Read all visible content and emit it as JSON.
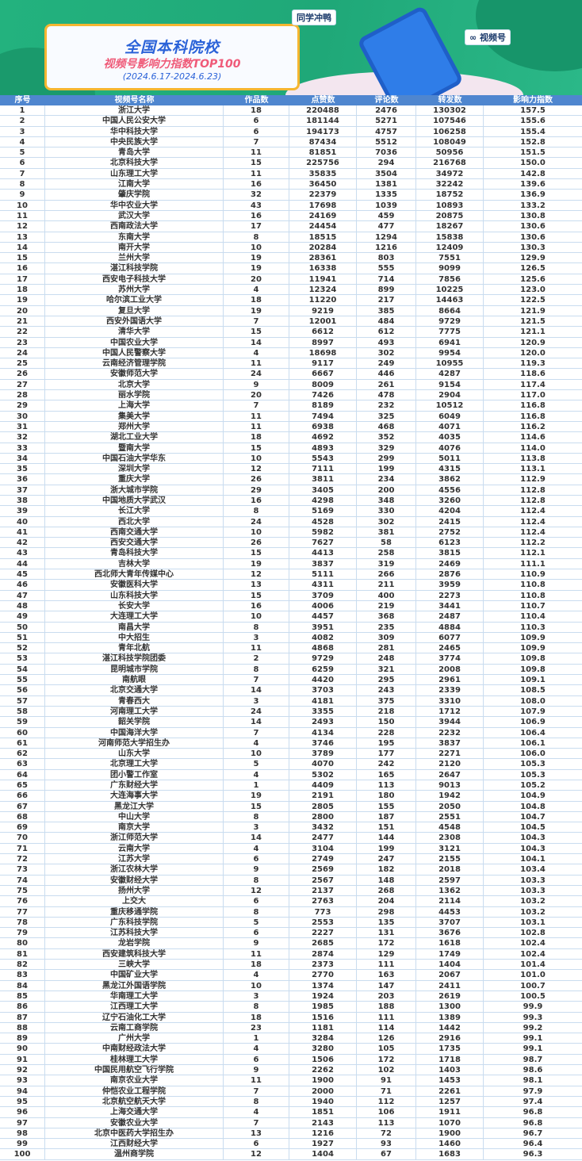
{
  "banner": {
    "title": "全国本科院校",
    "subtitle": "视频号影响力指数TOP100",
    "date_range": "(2024.6.17-2024.6.23)",
    "tag_left": "同学冲鸭",
    "tag_right": "视频号"
  },
  "colors": {
    "banner_green": "#23b27e",
    "header_blue": "#4f86cf",
    "title_blue": "#2a62d8",
    "subtitle_pink": "#ef5a78",
    "card_border": "#f5b630"
  },
  "table": {
    "headers": [
      "序号",
      "视频号名称",
      "作品数",
      "点赞数",
      "评论数",
      "转发数",
      "影响力指数"
    ],
    "rows": [
      [
        "1",
        "浙江大学",
        "18",
        "220488",
        "2476",
        "130302",
        "157.5"
      ],
      [
        "2",
        "中国人民公安大学",
        "6",
        "181144",
        "5271",
        "107546",
        "155.6"
      ],
      [
        "3",
        "华中科技大学",
        "6",
        "194173",
        "4757",
        "106258",
        "155.4"
      ],
      [
        "4",
        "中央民族大学",
        "7",
        "87434",
        "5512",
        "108049",
        "152.8"
      ],
      [
        "5",
        "青岛大学",
        "11",
        "81851",
        "7036",
        "50956",
        "151.5"
      ],
      [
        "6",
        "北京科技大学",
        "15",
        "225756",
        "294",
        "216768",
        "150.0"
      ],
      [
        "7",
        "山东理工大学",
        "11",
        "35835",
        "3504",
        "34972",
        "142.8"
      ],
      [
        "8",
        "江南大学",
        "16",
        "36450",
        "1381",
        "32242",
        "139.6"
      ],
      [
        "9",
        "肇庆学院",
        "32",
        "22379",
        "1335",
        "18752",
        "136.9"
      ],
      [
        "10",
        "华中农业大学",
        "43",
        "17698",
        "1039",
        "10893",
        "133.2"
      ],
      [
        "11",
        "武汉大学",
        "16",
        "24169",
        "459",
        "20875",
        "130.8"
      ],
      [
        "12",
        "西南政法大学",
        "17",
        "24454",
        "477",
        "18267",
        "130.6"
      ],
      [
        "13",
        "东南大学",
        "8",
        "18515",
        "1294",
        "15838",
        "130.6"
      ],
      [
        "14",
        "南开大学",
        "10",
        "20284",
        "1216",
        "12409",
        "130.3"
      ],
      [
        "15",
        "兰州大学",
        "19",
        "28361",
        "803",
        "7551",
        "129.9"
      ],
      [
        "16",
        "湛江科技学院",
        "19",
        "16338",
        "555",
        "9099",
        "126.5"
      ],
      [
        "17",
        "西安电子科技大学",
        "20",
        "11941",
        "714",
        "7856",
        "125.6"
      ],
      [
        "18",
        "苏州大学",
        "4",
        "12324",
        "899",
        "10225",
        "123.0"
      ],
      [
        "19",
        "哈尔滨工业大学",
        "18",
        "11220",
        "217",
        "14463",
        "122.5"
      ],
      [
        "20",
        "复旦大学",
        "19",
        "9219",
        "385",
        "8664",
        "121.9"
      ],
      [
        "21",
        "西安外国语大学",
        "7",
        "12001",
        "484",
        "9729",
        "121.5"
      ],
      [
        "22",
        "清华大学",
        "15",
        "6612",
        "612",
        "7775",
        "121.1"
      ],
      [
        "23",
        "中国农业大学",
        "14",
        "8997",
        "493",
        "6941",
        "120.9"
      ],
      [
        "24",
        "中国人民警察大学",
        "4",
        "18698",
        "302",
        "9954",
        "120.0"
      ],
      [
        "25",
        "云南经济管理学院",
        "11",
        "9117",
        "249",
        "10955",
        "119.3"
      ],
      [
        "26",
        "安徽师范大学",
        "24",
        "6667",
        "446",
        "4287",
        "118.6"
      ],
      [
        "27",
        "北京大学",
        "9",
        "8009",
        "261",
        "9154",
        "117.4"
      ],
      [
        "28",
        "丽水学院",
        "20",
        "7426",
        "478",
        "2904",
        "117.0"
      ],
      [
        "29",
        "上海大学",
        "7",
        "8189",
        "232",
        "10512",
        "116.8"
      ],
      [
        "30",
        "集美大学",
        "11",
        "7494",
        "325",
        "6049",
        "116.8"
      ],
      [
        "31",
        "郑州大学",
        "11",
        "6938",
        "468",
        "4071",
        "116.2"
      ],
      [
        "32",
        "湖北工业大学",
        "18",
        "4692",
        "352",
        "4035",
        "114.6"
      ],
      [
        "33",
        "暨南大学",
        "15",
        "4893",
        "329",
        "4076",
        "114.0"
      ],
      [
        "34",
        "中国石油大学华东",
        "10",
        "5543",
        "299",
        "5011",
        "113.8"
      ],
      [
        "35",
        "深圳大学",
        "12",
        "7111",
        "199",
        "4315",
        "113.1"
      ],
      [
        "36",
        "重庆大学",
        "26",
        "3811",
        "234",
        "3862",
        "112.9"
      ],
      [
        "37",
        "浙大城市学院",
        "29",
        "3405",
        "200",
        "4556",
        "112.8"
      ],
      [
        "38",
        "中国地质大学武汉",
        "16",
        "4298",
        "348",
        "3260",
        "112.8"
      ],
      [
        "39",
        "长江大学",
        "8",
        "5169",
        "330",
        "4204",
        "112.4"
      ],
      [
        "40",
        "西北大学",
        "24",
        "4528",
        "302",
        "2415",
        "112.4"
      ],
      [
        "41",
        "西南交通大学",
        "10",
        "5982",
        "381",
        "2752",
        "112.4"
      ],
      [
        "42",
        "西安交通大学",
        "26",
        "7627",
        "58",
        "6123",
        "112.2"
      ],
      [
        "43",
        "青岛科技大学",
        "15",
        "4413",
        "258",
        "3815",
        "112.1"
      ],
      [
        "44",
        "吉林大学",
        "19",
        "3837",
        "319",
        "2469",
        "111.1"
      ],
      [
        "45",
        "西北师大青年传媒中心",
        "12",
        "5111",
        "266",
        "2876",
        "110.9"
      ],
      [
        "46",
        "安徽医科大学",
        "13",
        "4311",
        "211",
        "3959",
        "110.8"
      ],
      [
        "47",
        "山东科技大学",
        "15",
        "3709",
        "400",
        "2273",
        "110.8"
      ],
      [
        "48",
        "长安大学",
        "16",
        "4006",
        "219",
        "3441",
        "110.7"
      ],
      [
        "49",
        "大连理工大学",
        "10",
        "4457",
        "368",
        "2487",
        "110.4"
      ],
      [
        "50",
        "南昌大学",
        "8",
        "3951",
        "235",
        "4884",
        "110.3"
      ],
      [
        "51",
        "中大招生",
        "3",
        "4082",
        "309",
        "6077",
        "109.9"
      ],
      [
        "52",
        "青年北航",
        "11",
        "4868",
        "281",
        "2465",
        "109.9"
      ],
      [
        "53",
        "湛江科技学院团委",
        "2",
        "9729",
        "248",
        "3774",
        "109.8"
      ],
      [
        "54",
        "昆明城市学院",
        "8",
        "6259",
        "321",
        "2008",
        "109.8"
      ],
      [
        "55",
        "南航眼",
        "7",
        "4420",
        "295",
        "2961",
        "109.1"
      ],
      [
        "56",
        "北京交通大学",
        "14",
        "3703",
        "243",
        "2339",
        "108.5"
      ],
      [
        "57",
        "青春西大",
        "3",
        "4181",
        "375",
        "3310",
        "108.0"
      ],
      [
        "58",
        "河南理工大学",
        "24",
        "3355",
        "218",
        "1712",
        "107.9"
      ],
      [
        "59",
        "韶关学院",
        "14",
        "2493",
        "150",
        "3944",
        "106.9"
      ],
      [
        "60",
        "中国海洋大学",
        "7",
        "4134",
        "228",
        "2232",
        "106.4"
      ],
      [
        "61",
        "河南师范大学招生办",
        "4",
        "3746",
        "195",
        "3837",
        "106.1"
      ],
      [
        "62",
        "山东大学",
        "10",
        "3789",
        "177",
        "2271",
        "106.0"
      ],
      [
        "63",
        "北京理工大学",
        "5",
        "4070",
        "242",
        "2120",
        "105.3"
      ],
      [
        "64",
        "团小警工作室",
        "4",
        "5302",
        "165",
        "2647",
        "105.3"
      ],
      [
        "65",
        "广东财经大学",
        "1",
        "4409",
        "113",
        "9013",
        "105.2"
      ],
      [
        "66",
        "大连海事大学",
        "19",
        "2191",
        "180",
        "1942",
        "104.9"
      ],
      [
        "67",
        "黑龙江大学",
        "15",
        "2805",
        "155",
        "2050",
        "104.8"
      ],
      [
        "68",
        "中山大学",
        "8",
        "2800",
        "187",
        "2551",
        "104.7"
      ],
      [
        "69",
        "南京大学",
        "3",
        "3432",
        "151",
        "4548",
        "104.5"
      ],
      [
        "70",
        "浙江师范大学",
        "14",
        "2477",
        "144",
        "2308",
        "104.3"
      ],
      [
        "71",
        "云南大学",
        "4",
        "3104",
        "199",
        "3121",
        "104.3"
      ],
      [
        "72",
        "江苏大学",
        "6",
        "2749",
        "247",
        "2155",
        "104.1"
      ],
      [
        "73",
        "浙江农林大学",
        "9",
        "2569",
        "182",
        "2018",
        "103.4"
      ],
      [
        "74",
        "安徽财经大学",
        "8",
        "2567",
        "148",
        "2597",
        "103.3"
      ],
      [
        "75",
        "扬州大学",
        "12",
        "2137",
        "268",
        "1362",
        "103.3"
      ],
      [
        "76",
        "上交大",
        "6",
        "2763",
        "204",
        "2114",
        "103.2"
      ],
      [
        "77",
        "重庆移通学院",
        "8",
        "773",
        "298",
        "4453",
        "103.2"
      ],
      [
        "78",
        "广东科技学院",
        "5",
        "2553",
        "135",
        "3707",
        "103.1"
      ],
      [
        "79",
        "江苏科技大学",
        "6",
        "2227",
        "131",
        "3676",
        "102.8"
      ],
      [
        "80",
        "龙岩学院",
        "9",
        "2685",
        "172",
        "1618",
        "102.4"
      ],
      [
        "81",
        "西安建筑科技大学",
        "11",
        "2874",
        "129",
        "1749",
        "102.4"
      ],
      [
        "82",
        "三峡大学",
        "18",
        "2373",
        "111",
        "1404",
        "101.4"
      ],
      [
        "83",
        "中国矿业大学",
        "4",
        "2770",
        "163",
        "2067",
        "101.0"
      ],
      [
        "84",
        "黑龙江外国语学院",
        "10",
        "1374",
        "147",
        "2411",
        "100.7"
      ],
      [
        "85",
        "华南理工大学",
        "3",
        "1924",
        "203",
        "2619",
        "100.5"
      ],
      [
        "86",
        "江西理工大学",
        "8",
        "1985",
        "188",
        "1300",
        "99.9"
      ],
      [
        "87",
        "辽宁石油化工大学",
        "18",
        "1516",
        "111",
        "1389",
        "99.3"
      ],
      [
        "88",
        "云南工商学院",
        "23",
        "1181",
        "114",
        "1442",
        "99.2"
      ],
      [
        "89",
        "广州大学",
        "1",
        "3284",
        "126",
        "2916",
        "99.1"
      ],
      [
        "90",
        "中南财经政法大学",
        "4",
        "3280",
        "105",
        "1735",
        "99.1"
      ],
      [
        "91",
        "桂林理工大学",
        "6",
        "1506",
        "172",
        "1718",
        "98.7"
      ],
      [
        "92",
        "中国民用航空飞行学院",
        "9",
        "2262",
        "102",
        "1403",
        "98.6"
      ],
      [
        "93",
        "南京农业大学",
        "11",
        "1900",
        "91",
        "1453",
        "98.1"
      ],
      [
        "94",
        "仲恺农业工程学院",
        "7",
        "2000",
        "71",
        "2261",
        "97.9"
      ],
      [
        "95",
        "北京航空航天大学",
        "8",
        "1940",
        "112",
        "1257",
        "97.4"
      ],
      [
        "96",
        "上海交通大学",
        "4",
        "1851",
        "106",
        "1911",
        "96.8"
      ],
      [
        "97",
        "安徽农业大学",
        "7",
        "2143",
        "113",
        "1070",
        "96.8"
      ],
      [
        "98",
        "北京中医药大学招生办",
        "13",
        "1216",
        "72",
        "1900",
        "96.7"
      ],
      [
        "99",
        "江西财经大学",
        "6",
        "1927",
        "93",
        "1460",
        "96.4"
      ],
      [
        "100",
        "温州商学院",
        "12",
        "1404",
        "67",
        "1683",
        "96.3"
      ]
    ]
  }
}
